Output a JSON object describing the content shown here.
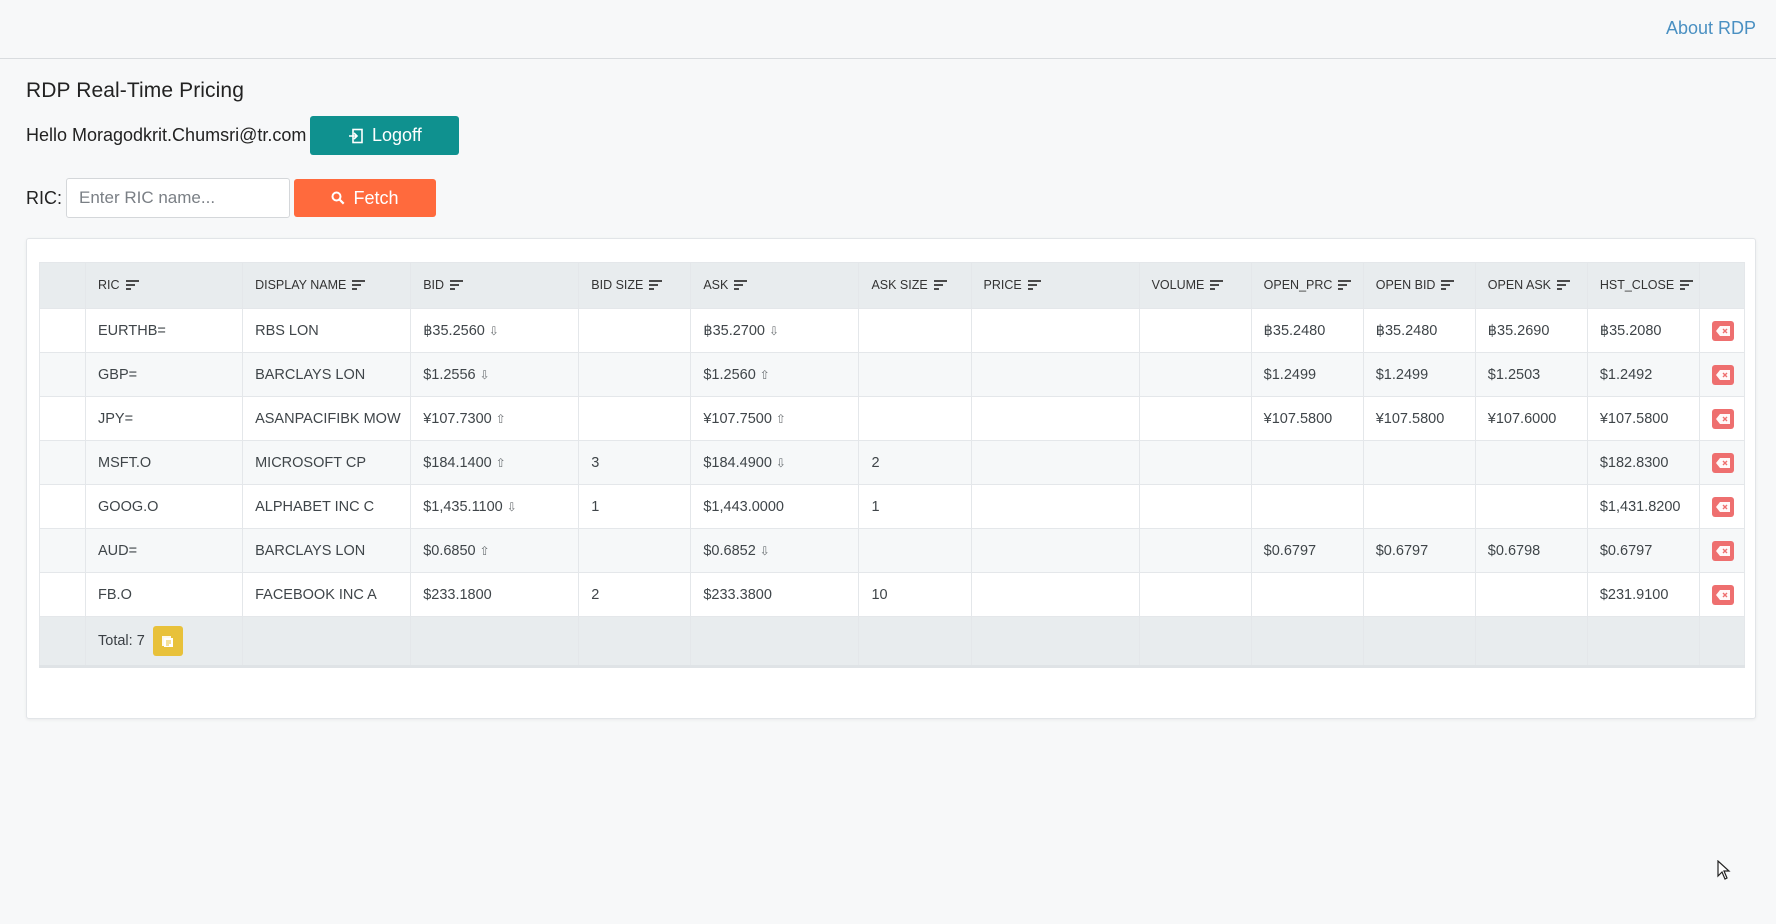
{
  "header": {
    "about_label": "About RDP"
  },
  "page": {
    "title": "RDP Real-Time Pricing",
    "greeting": "Hello Moragodkrit.Chumsri@tr.com",
    "logoff_label": "Logoff",
    "ric_label": "RIC:",
    "ric_placeholder": "Enter RIC name...",
    "ric_value": "",
    "fetch_label": "Fetch"
  },
  "table": {
    "columns": [
      "RIC",
      "DISPLAY NAME",
      "BID",
      "BID SIZE",
      "ASK",
      "ASK SIZE",
      "PRICE",
      "VOLUME",
      "OPEN_PRC",
      "OPEN BID",
      "OPEN ASK",
      "HST_CLOSE"
    ],
    "rows": [
      {
        "ric": "EURTHB=",
        "display_name": "RBS LON",
        "bid": "฿35.2560",
        "bid_dir": "down",
        "bid_size": "",
        "ask": "฿35.2700",
        "ask_dir": "down",
        "ask_size": "",
        "price": "",
        "volume": "",
        "open_prc": "฿35.2480",
        "open_bid": "฿35.2480",
        "open_ask": "฿35.2690",
        "hst_close": "฿35.2080"
      },
      {
        "ric": "GBP=",
        "display_name": "BARCLAYS LON",
        "bid": "$1.2556",
        "bid_dir": "down",
        "bid_size": "",
        "ask": "$1.2560",
        "ask_dir": "up",
        "ask_size": "",
        "price": "",
        "volume": "",
        "open_prc": "$1.2499",
        "open_bid": "$1.2499",
        "open_ask": "$1.2503",
        "hst_close": "$1.2492"
      },
      {
        "ric": "JPY=",
        "display_name": "ASANPACIFIBK MOW",
        "bid": "¥107.7300",
        "bid_dir": "up",
        "bid_size": "",
        "ask": "¥107.7500",
        "ask_dir": "up",
        "ask_size": "",
        "price": "",
        "volume": "",
        "open_prc": "¥107.5800",
        "open_bid": "¥107.5800",
        "open_ask": "¥107.6000",
        "hst_close": "¥107.5800"
      },
      {
        "ric": "MSFT.O",
        "display_name": "MICROSOFT CP",
        "bid": "$184.1400",
        "bid_dir": "up",
        "bid_size": "3",
        "ask": "$184.4900",
        "ask_dir": "down",
        "ask_size": "2",
        "price": "",
        "volume": "",
        "open_prc": "",
        "open_bid": "",
        "open_ask": "",
        "hst_close": "$182.8300"
      },
      {
        "ric": "GOOG.O",
        "display_name": "ALPHABET INC C",
        "bid": "$1,435.1100",
        "bid_dir": "down",
        "bid_size": "1",
        "ask": "$1,443.0000",
        "ask_dir": "",
        "ask_size": "1",
        "price": "",
        "volume": "",
        "open_prc": "",
        "open_bid": "",
        "open_ask": "",
        "hst_close": "$1,431.8200"
      },
      {
        "ric": "AUD=",
        "display_name": "BARCLAYS LON",
        "bid": "$0.6850",
        "bid_dir": "up",
        "bid_size": "",
        "ask": "$0.6852",
        "ask_dir": "down",
        "ask_size": "",
        "price": "",
        "volume": "",
        "open_prc": "$0.6797",
        "open_bid": "$0.6797",
        "open_ask": "$0.6798",
        "hst_close": "$0.6797"
      },
      {
        "ric": "FB.O",
        "display_name": "FACEBOOK INC A",
        "bid": "$233.1800",
        "bid_dir": "",
        "bid_size": "2",
        "ask": "$233.3800",
        "ask_dir": "",
        "ask_size": "10",
        "price": "",
        "volume": "",
        "open_prc": "",
        "open_bid": "",
        "open_ask": "",
        "hst_close": "$231.9100"
      }
    ],
    "total_label": "Total: 7"
  },
  "colors": {
    "down": "#e41b1b",
    "up": "#2f8a2a",
    "logoff": "#0f918f",
    "fetch": "#ff6a3d",
    "delete": "#ee6f6f",
    "export": "#e8c13a",
    "link": "#4a90c2"
  },
  "icons": {
    "logoff": "logout-icon",
    "fetch": "search-icon",
    "sort": "sort-lines-icon",
    "delete": "backspace-delete-icon",
    "export": "csv-export-icon"
  }
}
